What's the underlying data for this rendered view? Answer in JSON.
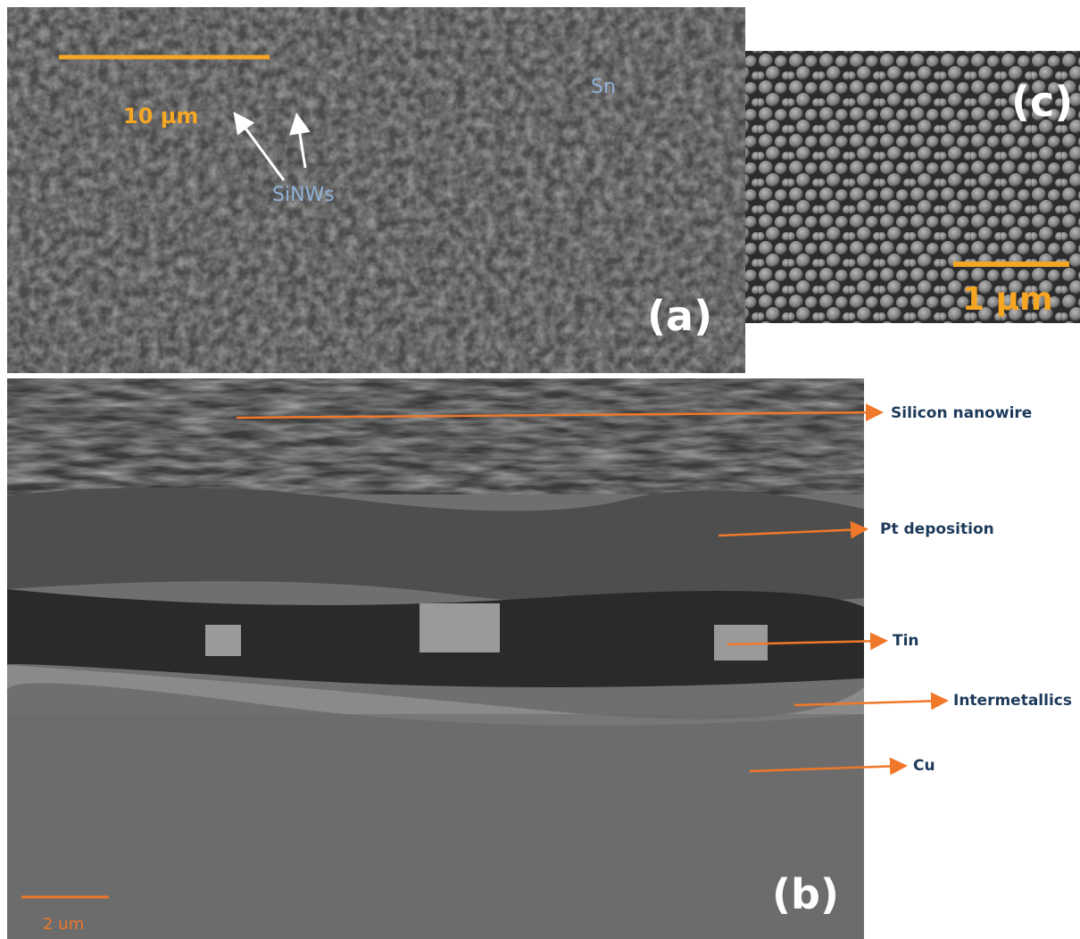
{
  "panels": {
    "a": {
      "label": "(a)",
      "scale_bar": "10 µm",
      "annotations": [
        "Sn",
        "SiNWs"
      ]
    },
    "c": {
      "label": "(c)",
      "scale_bar": "1 µm"
    },
    "b": {
      "label": "(b)",
      "scale_bar": "2 um",
      "layers": [
        "Silicon nanowire",
        "Pt deposition",
        "Tin",
        "Intermetallics",
        "Cu"
      ]
    }
  }
}
